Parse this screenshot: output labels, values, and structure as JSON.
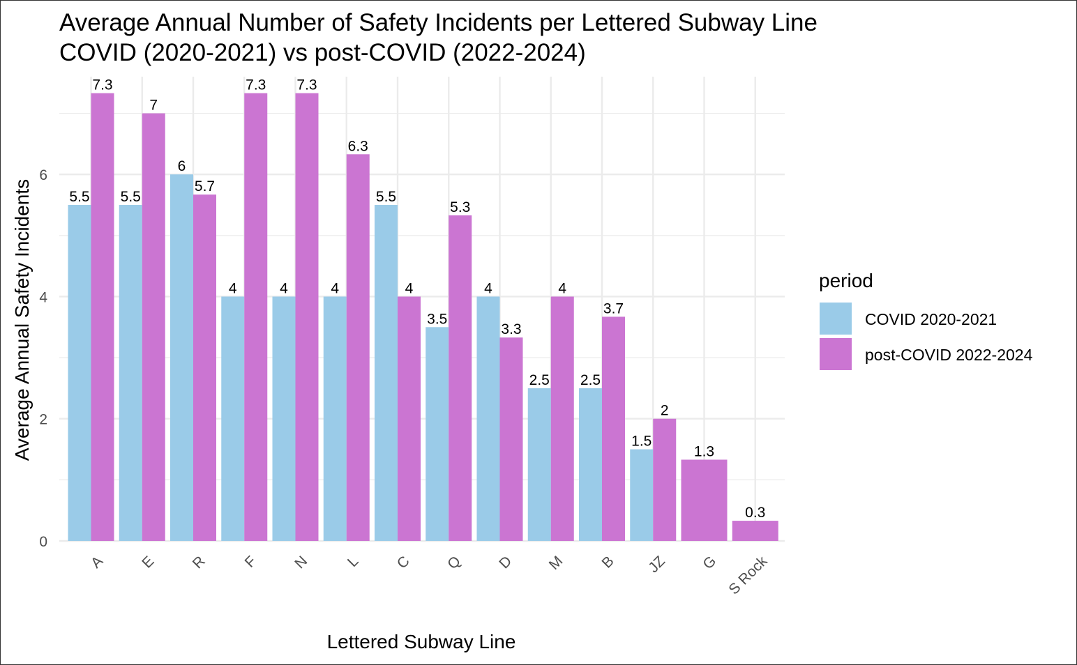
{
  "chart_data": {
    "type": "bar",
    "title": "Average Annual Number of Safety Incidents per Lettered Subway Line",
    "subtitle": "COVID (2020-2021) vs post-COVID (2022-2024)",
    "xlabel": "Lettered Subway Line",
    "ylabel": "Average Annual Safety Incidents",
    "categories": [
      "A",
      "E",
      "R",
      "F",
      "N",
      "L",
      "C",
      "Q",
      "D",
      "M",
      "B",
      "JZ",
      "G",
      "S Rock"
    ],
    "series": [
      {
        "name": "COVID 2020-2021",
        "color": "#9ACBE8",
        "values": [
          5.5,
          5.5,
          6,
          4,
          4,
          4,
          5.5,
          3.5,
          4,
          2.5,
          2.5,
          1.5,
          null,
          null
        ],
        "labels": [
          "5.5",
          "5.5",
          "6",
          "4",
          "4",
          "4",
          "5.5",
          "3.5",
          "4",
          "2.5",
          "2.5",
          "1.5",
          "",
          ""
        ]
      },
      {
        "name": "post-COVID 2022-2024",
        "color": "#CB75D2",
        "values": [
          7.33,
          7,
          5.67,
          7.33,
          7.33,
          6.33,
          4,
          5.33,
          3.33,
          4,
          3.67,
          2,
          1.33,
          0.33
        ],
        "labels": [
          "7.3",
          "7",
          "5.7",
          "7.3",
          "7.3",
          "6.3",
          "4",
          "5.3",
          "3.3",
          "4",
          "3.7",
          "2",
          "1.3",
          "0.3"
        ]
      }
    ],
    "ylim": [
      0,
      7.6
    ],
    "y_ticks": [
      0,
      2,
      4,
      6
    ],
    "y_tick_labels": [
      "0",
      "2",
      "4",
      "6"
    ],
    "grid": true,
    "legend": {
      "title": "period",
      "position": "right"
    }
  }
}
